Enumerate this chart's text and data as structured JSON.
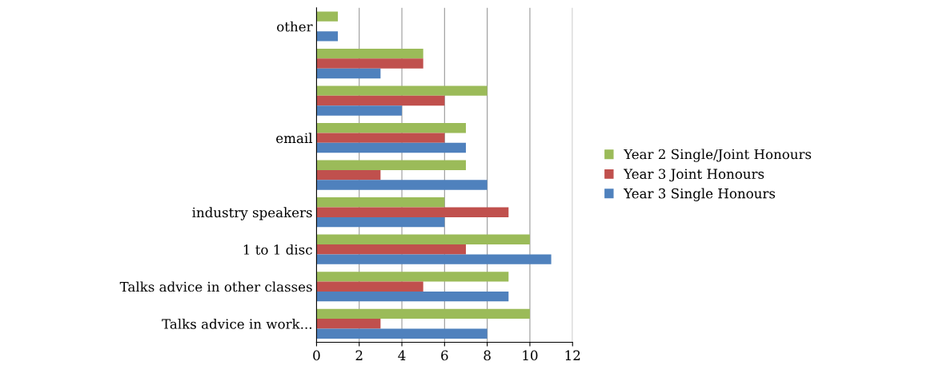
{
  "chart_data": {
    "type": "bar",
    "orientation": "horizontal",
    "categories": [
      "other",
      null,
      null,
      "email",
      null,
      "industry speakers",
      "1 to 1 disc",
      "Talks advice in other classes",
      "Talks advice in work..."
    ],
    "series": [
      {
        "name": "Year 2 Single/Joint Honours",
        "color": "#9bbb59",
        "values": [
          1,
          5,
          8,
          7,
          7,
          6,
          10,
          9,
          10
        ]
      },
      {
        "name": "Year 3 Joint Honours",
        "color": "#c0504d",
        "values": [
          0,
          5,
          6,
          6,
          3,
          9,
          7,
          5,
          3
        ]
      },
      {
        "name": "Year 3 Single Honours",
        "color": "#4f81bd",
        "values": [
          1,
          3,
          4,
          7,
          8,
          6,
          11,
          9,
          8
        ]
      }
    ],
    "xlim": [
      0,
      12
    ],
    "xticks": [
      0,
      2,
      4,
      6,
      8,
      10,
      12
    ],
    "grid": "x",
    "legend": "right"
  }
}
